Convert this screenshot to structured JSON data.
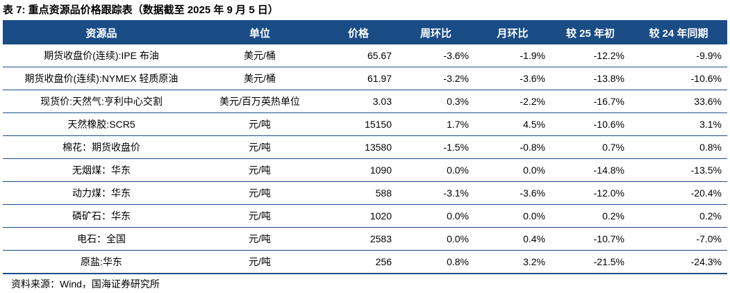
{
  "title": "表 7:  重点资源品价格跟踪表（数据截至 2025 年 9 月 5 日）",
  "header": [
    "资源品",
    "单位",
    "价格",
    "周环比",
    "月环比",
    "较 25 年初",
    "较 24 年同期"
  ],
  "rows": [
    [
      "期货收盘价(连续):IPE 布油",
      "美元/桶",
      "65.67",
      "-3.6%",
      "-1.9%",
      "-12.2%",
      "-9.9%"
    ],
    [
      "期货收盘价(连续):NYMEX 轻质原油",
      "美元/桶",
      "61.97",
      "-3.2%",
      "-3.6%",
      "-13.8%",
      "-10.6%"
    ],
    [
      "现货价:天然气:亨利中心交割",
      "美元/百万英热单位",
      "3.03",
      "0.3%",
      "-2.2%",
      "-16.7%",
      "33.6%"
    ],
    [
      "天然橡胶:SCR5",
      "元/吨",
      "15150",
      "1.7%",
      "4.5%",
      "-10.6%",
      "3.1%"
    ],
    [
      "棉花：期货收盘价",
      "元/吨",
      "13580",
      "-1.5%",
      "-0.8%",
      "0.7%",
      "0.8%"
    ],
    [
      "无烟煤：华东",
      "元/吨",
      "1090",
      "0.0%",
      "0.0%",
      "-14.8%",
      "-13.5%"
    ],
    [
      "动力煤：华东",
      "元/吨",
      "588",
      "-3.1%",
      "-3.6%",
      "-12.0%",
      "-20.4%"
    ],
    [
      "磷矿石：华东",
      "元/吨",
      "1020",
      "0.0%",
      "0.0%",
      "0.2%",
      "0.2%"
    ],
    [
      "电石：全国",
      "元/吨",
      "2583",
      "0.0%",
      "0.4%",
      "-10.7%",
      "-7.0%"
    ],
    [
      "原盐:华东",
      "元/吨",
      "256",
      "0.8%",
      "3.2%",
      "-21.5%",
      "-24.3%"
    ]
  ],
  "source": "资料来源：Wind，国海证券研究所",
  "colors": {
    "header_bg": "#1a4c86",
    "header_text": "#ffffff",
    "rule": "#1a4c86"
  }
}
